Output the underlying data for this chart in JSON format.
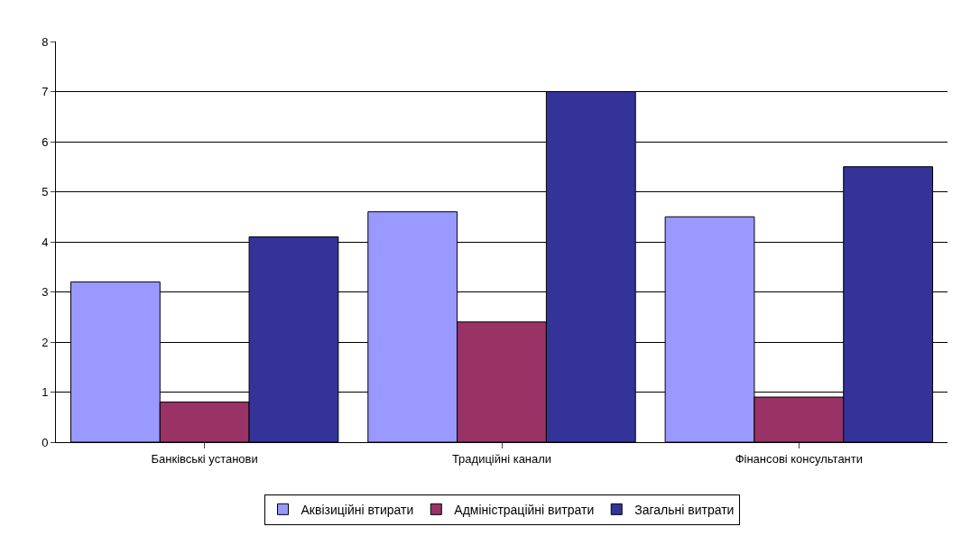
{
  "chart_data": {
    "type": "bar",
    "categories": [
      "Банківські установи",
      "Традиційні канали",
      "Фінансові консультанти"
    ],
    "series": [
      {
        "name": "Аквізиційні втирати",
        "color": "#9999ff",
        "values": [
          3.2,
          4.6,
          4.5
        ]
      },
      {
        "name": "Адміністраційні витрати",
        "color": "#993366",
        "values": [
          0.8,
          2.4,
          0.9
        ]
      },
      {
        "name": "Загальні витрати",
        "color": "#333399",
        "values": [
          4.1,
          7.0,
          5.5
        ]
      }
    ],
    "ylim": [
      0,
      8
    ],
    "yticks": [
      0,
      1,
      2,
      3,
      4,
      5,
      6,
      7,
      8
    ],
    "grid": "y",
    "legend": "bottom"
  }
}
